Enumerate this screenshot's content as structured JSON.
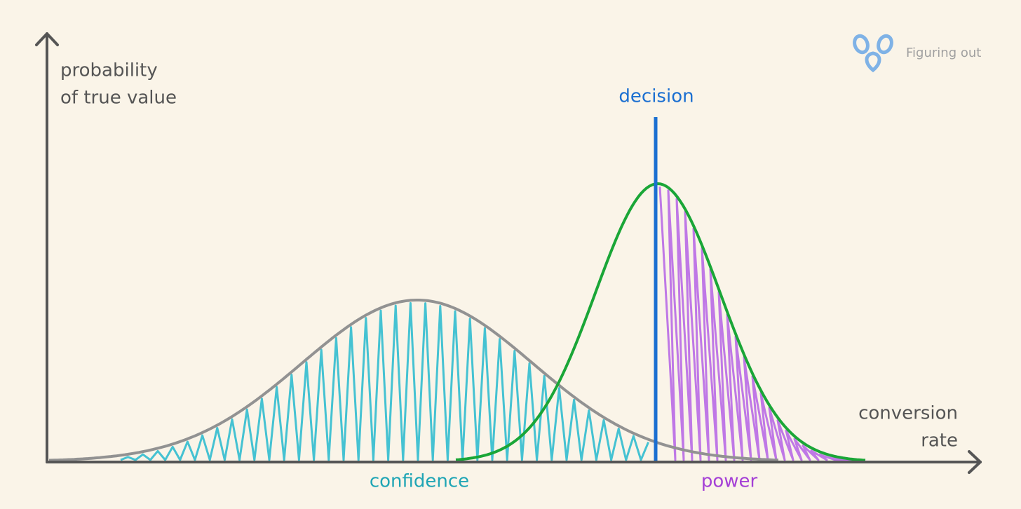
{
  "logo": {
    "text": "Figuring out"
  },
  "y_axis": {
    "label": [
      "probability",
      "of true value"
    ]
  },
  "x_axis": {
    "label": [
      "conversion",
      "rate"
    ]
  },
  "decision": {
    "label": "decision"
  },
  "regions": {
    "confidence": "confidence",
    "power": "power"
  }
}
